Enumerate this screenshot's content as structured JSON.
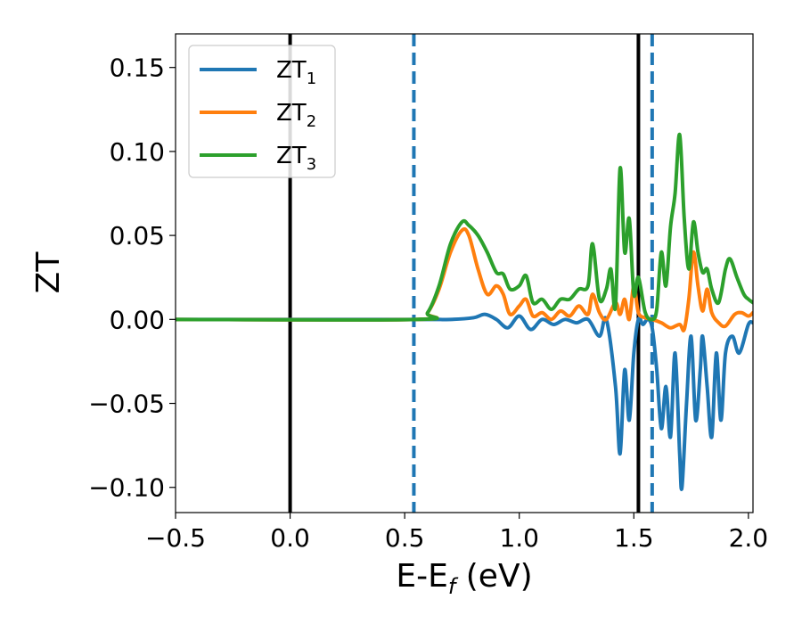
{
  "chart_data": {
    "type": "line",
    "xlabel": "E-E",
    "xlabel_sub": "f",
    "xlabel_unit": " (eV)",
    "ylabel": "ZT",
    "xlim": [
      -0.5,
      2.02
    ],
    "ylim": [
      -0.115,
      0.17
    ],
    "xticks": [
      -0.5,
      0.0,
      0.5,
      1.0,
      1.5,
      2.0
    ],
    "xtick_labels": [
      "−0.5",
      "0.0",
      "0.5",
      "1.0",
      "1.5",
      "2.0"
    ],
    "yticks": [
      -0.1,
      -0.05,
      0.0,
      0.05,
      0.1,
      0.15
    ],
    "ytick_labels": [
      "−0.10",
      "−0.05",
      "0.00",
      "0.05",
      "0.10",
      "0.15"
    ],
    "grid": false,
    "legend_position": "top-left",
    "vlines": [
      {
        "x": 0.0,
        "color": "#000000",
        "style": "solid"
      },
      {
        "x": 0.54,
        "color": "#1f77b4",
        "style": "dashed"
      },
      {
        "x": 1.52,
        "color": "#000000",
        "style": "solid"
      },
      {
        "x": 1.58,
        "color": "#1f77b4",
        "style": "dashed"
      }
    ],
    "series": [
      {
        "name": "ZT",
        "name_sub": "1",
        "color": "#1f77b4",
        "points": [
          [
            -0.5,
            0
          ],
          [
            0.5,
            0
          ],
          [
            0.7,
            0
          ],
          [
            0.8,
            0.001
          ],
          [
            0.85,
            0.003
          ],
          [
            0.9,
            0.0
          ],
          [
            0.95,
            -0.005
          ],
          [
            1.0,
            0.002
          ],
          [
            1.05,
            -0.006
          ],
          [
            1.1,
            0.0
          ],
          [
            1.15,
            -0.003
          ],
          [
            1.2,
            0.0
          ],
          [
            1.25,
            -0.002
          ],
          [
            1.3,
            0.0
          ],
          [
            1.35,
            -0.01
          ],
          [
            1.38,
            0.0
          ],
          [
            1.42,
            -0.04
          ],
          [
            1.44,
            -0.08
          ],
          [
            1.46,
            -0.03
          ],
          [
            1.48,
            -0.06
          ],
          [
            1.5,
            -0.02
          ],
          [
            1.52,
            0.0
          ],
          [
            1.54,
            -0.003
          ],
          [
            1.56,
            0.0
          ],
          [
            1.58,
            -0.005
          ],
          [
            1.6,
            -0.03
          ],
          [
            1.62,
            -0.065
          ],
          [
            1.64,
            -0.04
          ],
          [
            1.66,
            -0.07
          ],
          [
            1.68,
            -0.02
          ],
          [
            1.7,
            -0.08
          ],
          [
            1.71,
            -0.1
          ],
          [
            1.73,
            -0.05
          ],
          [
            1.75,
            -0.01
          ],
          [
            1.77,
            -0.06
          ],
          [
            1.79,
            -0.03
          ],
          [
            1.8,
            -0.01
          ],
          [
            1.82,
            -0.04
          ],
          [
            1.84,
            -0.07
          ],
          [
            1.86,
            -0.02
          ],
          [
            1.88,
            -0.06
          ],
          [
            1.9,
            -0.02
          ],
          [
            1.93,
            -0.01
          ],
          [
            1.96,
            -0.02
          ],
          [
            2.0,
            -0.003
          ],
          [
            2.02,
            -0.002
          ]
        ]
      },
      {
        "name": "ZT",
        "name_sub": "2",
        "color": "#ff7f0e",
        "points": [
          [
            -0.5,
            0
          ],
          [
            0.55,
            0
          ],
          [
            0.6,
            0.004
          ],
          [
            0.65,
            0.018
          ],
          [
            0.7,
            0.04
          ],
          [
            0.75,
            0.053
          ],
          [
            0.78,
            0.05
          ],
          [
            0.82,
            0.03
          ],
          [
            0.86,
            0.015
          ],
          [
            0.9,
            0.02
          ],
          [
            0.93,
            0.015
          ],
          [
            0.96,
            0.003
          ],
          [
            1.0,
            0.008
          ],
          [
            1.03,
            0.012
          ],
          [
            1.06,
            0.002
          ],
          [
            1.1,
            0.004
          ],
          [
            1.14,
            0.0
          ],
          [
            1.18,
            0.005
          ],
          [
            1.22,
            0.002
          ],
          [
            1.26,
            0.008
          ],
          [
            1.3,
            0.003
          ],
          [
            1.32,
            0.015
          ],
          [
            1.35,
            0.004
          ],
          [
            1.38,
            0.0
          ],
          [
            1.42,
            0.01
          ],
          [
            1.44,
            0.003
          ],
          [
            1.46,
            0.012
          ],
          [
            1.48,
            0.0
          ],
          [
            1.5,
            0.02
          ],
          [
            1.52,
            0.004
          ],
          [
            1.55,
            0.001
          ],
          [
            1.58,
            0.0
          ],
          [
            1.62,
            -0.002
          ],
          [
            1.66,
            -0.005
          ],
          [
            1.7,
            -0.003
          ],
          [
            1.72,
            -0.006
          ],
          [
            1.74,
            0.012
          ],
          [
            1.76,
            0.04
          ],
          [
            1.78,
            0.02
          ],
          [
            1.8,
            0.005
          ],
          [
            1.82,
            0.018
          ],
          [
            1.84,
            0.004
          ],
          [
            1.87,
            -0.002
          ],
          [
            1.9,
            -0.004
          ],
          [
            1.94,
            0.003
          ],
          [
            1.97,
            0.004
          ],
          [
            2.0,
            0.002
          ],
          [
            2.02,
            0.004
          ]
        ]
      },
      {
        "name": "ZT",
        "name_sub": "3",
        "color": "#2ca02c",
        "points": [
          [
            -0.5,
            0
          ],
          [
            0.55,
            0
          ],
          [
            0.6,
            0.004
          ],
          [
            0.65,
            0.02
          ],
          [
            0.7,
            0.045
          ],
          [
            0.75,
            0.058
          ],
          [
            0.78,
            0.056
          ],
          [
            0.82,
            0.05
          ],
          [
            0.86,
            0.04
          ],
          [
            0.9,
            0.028
          ],
          [
            0.93,
            0.027
          ],
          [
            0.96,
            0.018
          ],
          [
            1.0,
            0.02
          ],
          [
            1.03,
            0.026
          ],
          [
            1.06,
            0.01
          ],
          [
            1.1,
            0.012
          ],
          [
            1.14,
            0.006
          ],
          [
            1.18,
            0.012
          ],
          [
            1.22,
            0.012
          ],
          [
            1.26,
            0.018
          ],
          [
            1.3,
            0.02
          ],
          [
            1.32,
            0.045
          ],
          [
            1.35,
            0.012
          ],
          [
            1.38,
            0.018
          ],
          [
            1.4,
            0.03
          ],
          [
            1.42,
            0.008
          ],
          [
            1.44,
            0.09
          ],
          [
            1.46,
            0.04
          ],
          [
            1.48,
            0.06
          ],
          [
            1.5,
            0.015
          ],
          [
            1.52,
            0.025
          ],
          [
            1.55,
            0.004
          ],
          [
            1.58,
            0.0
          ],
          [
            1.6,
            0.006
          ],
          [
            1.62,
            0.04
          ],
          [
            1.64,
            0.02
          ],
          [
            1.66,
            0.055
          ],
          [
            1.68,
            0.075
          ],
          [
            1.7,
            0.11
          ],
          [
            1.72,
            0.06
          ],
          [
            1.74,
            0.03
          ],
          [
            1.76,
            0.058
          ],
          [
            1.78,
            0.04
          ],
          [
            1.8,
            0.028
          ],
          [
            1.82,
            0.03
          ],
          [
            1.84,
            0.018
          ],
          [
            1.87,
            0.01
          ],
          [
            1.9,
            0.03
          ],
          [
            1.92,
            0.036
          ],
          [
            1.95,
            0.025
          ],
          [
            1.98,
            0.015
          ],
          [
            2.0,
            0.012
          ],
          [
            2.02,
            0.01
          ]
        ]
      }
    ]
  }
}
